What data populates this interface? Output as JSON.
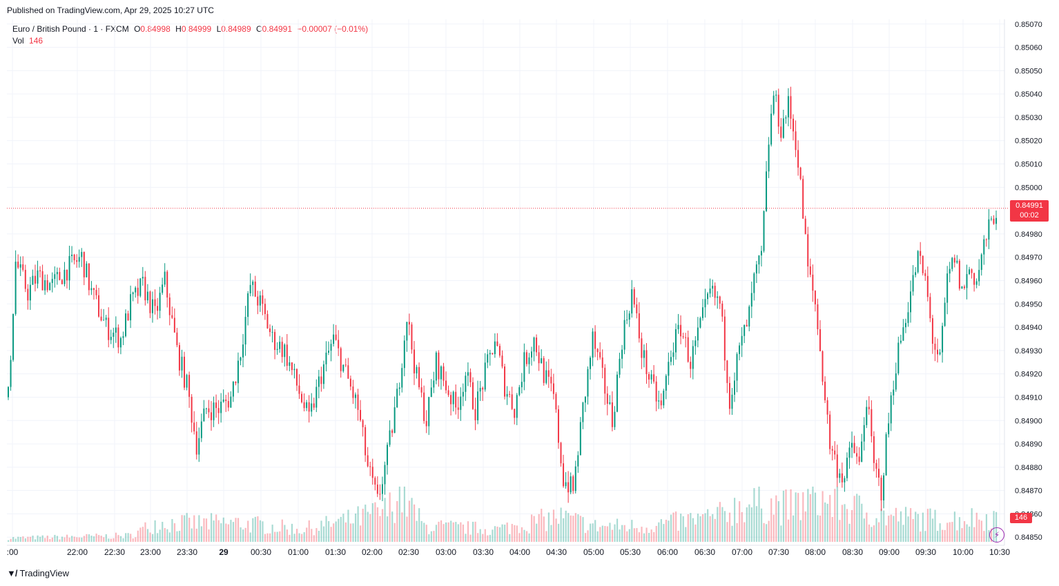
{
  "header": {
    "published": "Published on TradingView.com, Apr 29, 2025 10:27 UTC"
  },
  "legend": {
    "symbol": "Euro / British Pound · 1 · FXCM",
    "o_label": "O",
    "o_value": "0.84998",
    "h_label": "H",
    "h_value": "0.84999",
    "l_label": "L",
    "l_value": "0.84989",
    "c_label": "C",
    "c_value": "0.84991",
    "change": "−0.00007 (−0.01%)",
    "vol_label": "Vol",
    "vol_value": "146"
  },
  "badges": {
    "last_price": "0.84991",
    "countdown": "00:02",
    "volume": "146"
  },
  "footer": {
    "brand": "TradingView",
    "logo_glyph": "𝟏𝟕"
  },
  "icons": {
    "flash": "flash-icon",
    "logo": "tradingview-logo-icon"
  },
  "colors": {
    "up": "#089981",
    "down": "#f23645",
    "grid": "#f0f3fa",
    "axis_text": "#131722"
  },
  "chart_data": {
    "type": "candlestick",
    "symbol": "EURGBP",
    "interval": "1",
    "ylim": [
      0.84848,
      0.85072
    ],
    "y_ticks": [
      "0.85070",
      "0.85060",
      "0.85050",
      "0.85040",
      "0.85030",
      "0.85020",
      "0.85010",
      "0.85000",
      "0.84980",
      "0.84970",
      "0.84960",
      "0.84950",
      "0.84940",
      "0.84930",
      "0.84920",
      "0.84910",
      "0.84900",
      "0.84890",
      "0.84880",
      "0.84870",
      "0.84860",
      "0.84850"
    ],
    "x_ticks": [
      ":00",
      "22:00",
      "22:30",
      "23:00",
      "23:30",
      "29",
      "00:30",
      "01:00",
      "01:30",
      "02:00",
      "02:30",
      "03:00",
      "03:30",
      "04:00",
      "04:30",
      "05:00",
      "05:30",
      "06:00",
      "06:30",
      "07:00",
      "07:30",
      "08:00",
      "08:30",
      "09:00",
      "09:30",
      "10:00",
      "10:30"
    ],
    "last_price": 0.84991,
    "price_path": [
      [
        0,
        0.8491
      ],
      [
        3,
        0.84968
      ],
      [
        8,
        0.84955
      ],
      [
        12,
        0.84962
      ],
      [
        18,
        0.84958
      ],
      [
        24,
        0.84965
      ],
      [
        30,
        0.8497
      ],
      [
        34,
        0.84955
      ],
      [
        40,
        0.8494
      ],
      [
        46,
        0.84935
      ],
      [
        50,
        0.8495
      ],
      [
        55,
        0.84958
      ],
      [
        60,
        0.84945
      ],
      [
        64,
        0.8496
      ],
      [
        69,
        0.8493
      ],
      [
        73,
        0.84915
      ],
      [
        77,
        0.8489
      ],
      [
        81,
        0.84905
      ],
      [
        86,
        0.84905
      ],
      [
        91,
        0.8491
      ],
      [
        95,
        0.8493
      ],
      [
        99,
        0.84958
      ],
      [
        103,
        0.8495
      ],
      [
        108,
        0.84935
      ],
      [
        113,
        0.8493
      ],
      [
        118,
        0.84915
      ],
      [
        123,
        0.849
      ],
      [
        128,
        0.8492
      ],
      [
        133,
        0.84935
      ],
      [
        138,
        0.8492
      ],
      [
        143,
        0.84905
      ],
      [
        147,
        0.8488
      ],
      [
        151,
        0.84865
      ],
      [
        155,
        0.84885
      ],
      [
        159,
        0.8491
      ],
      [
        163,
        0.84945
      ],
      [
        167,
        0.84918
      ],
      [
        171,
        0.849
      ],
      [
        175,
        0.84925
      ],
      [
        179,
        0.84915
      ],
      [
        183,
        0.84905
      ],
      [
        187,
        0.8492
      ],
      [
        191,
        0.84905
      ],
      [
        195,
        0.8492
      ],
      [
        199,
        0.84935
      ],
      [
        203,
        0.84915
      ],
      [
        207,
        0.84905
      ],
      [
        211,
        0.84925
      ],
      [
        215,
        0.84935
      ],
      [
        219,
        0.8492
      ],
      [
        223,
        0.8491
      ],
      [
        227,
        0.84875
      ],
      [
        231,
        0.8487
      ],
      [
        235,
        0.84905
      ],
      [
        239,
        0.84935
      ],
      [
        243,
        0.84918
      ],
      [
        247,
        0.849
      ],
      [
        251,
        0.84935
      ],
      [
        255,
        0.84955
      ],
      [
        259,
        0.8493
      ],
      [
        263,
        0.84915
      ],
      [
        267,
        0.84905
      ],
      [
        271,
        0.8493
      ],
      [
        275,
        0.8494
      ],
      [
        279,
        0.84925
      ],
      [
        283,
        0.8494
      ],
      [
        287,
        0.84955
      ],
      [
        291,
        0.8495
      ],
      [
        295,
        0.8491
      ],
      [
        299,
        0.8493
      ],
      [
        303,
        0.84945
      ],
      [
        305,
        0.8496
      ],
      [
        308,
        0.8497
      ],
      [
        311,
        0.8502
      ],
      [
        313,
        0.8504
      ],
      [
        316,
        0.85025
      ],
      [
        319,
        0.85035
      ],
      [
        322,
        0.8502
      ],
      [
        324,
        0.85
      ],
      [
        327,
        0.84965
      ],
      [
        330,
        0.8495
      ],
      [
        333,
        0.8492
      ],
      [
        336,
        0.8489
      ],
      [
        339,
        0.8488
      ],
      [
        342,
        0.84875
      ],
      [
        345,
        0.8489
      ],
      [
        348,
        0.8488
      ],
      [
        351,
        0.8491
      ],
      [
        354,
        0.8488
      ],
      [
        357,
        0.8487
      ],
      [
        360,
        0.849
      ],
      [
        363,
        0.84925
      ],
      [
        366,
        0.8494
      ],
      [
        369,
        0.84955
      ],
      [
        372,
        0.8497
      ],
      [
        375,
        0.8496
      ],
      [
        378,
        0.84935
      ],
      [
        381,
        0.84925
      ],
      [
        384,
        0.8496
      ],
      [
        387,
        0.8497
      ],
      [
        390,
        0.84955
      ],
      [
        393,
        0.84965
      ],
      [
        396,
        0.8496
      ],
      [
        399,
        0.84975
      ],
      [
        402,
        0.84985
      ],
      [
        404,
        0.84991
      ]
    ],
    "volume_path": [
      [
        0,
        6
      ],
      [
        50,
        10
      ],
      [
        60,
        30
      ],
      [
        95,
        30
      ],
      [
        120,
        20
      ],
      [
        140,
        35
      ],
      [
        155,
        50
      ],
      [
        160,
        80
      ],
      [
        170,
        25
      ],
      [
        200,
        20
      ],
      [
        225,
        40
      ],
      [
        240,
        25
      ],
      [
        260,
        25
      ],
      [
        290,
        40
      ],
      [
        300,
        60
      ],
      [
        310,
        60
      ],
      [
        320,
        55
      ],
      [
        330,
        70
      ],
      [
        345,
        55
      ],
      [
        360,
        40
      ],
      [
        380,
        35
      ],
      [
        404,
        40
      ]
    ]
  }
}
